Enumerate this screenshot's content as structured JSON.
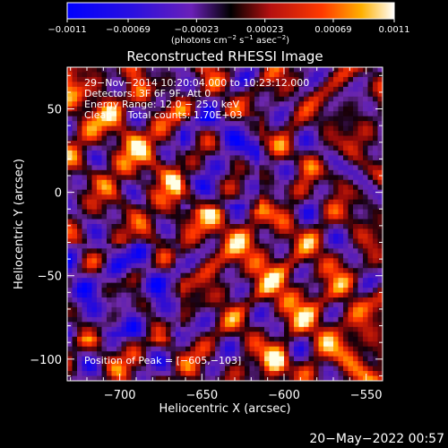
{
  "chart_data": {
    "type": "heatmap",
    "title": "Reconstructed RHESSI Image",
    "xlabel": "Heliocentric X (arcsec)",
    "ylabel": "Heliocentric Y (arcsec)",
    "xlim": [
      -732,
      -540
    ],
    "ylim": [
      -113,
      75
    ],
    "x_ticks": [
      -700,
      -650,
      -600,
      -550
    ],
    "y_ticks": [
      50,
      0,
      -50,
      -100
    ],
    "x_tick_labels": [
      "−700",
      "−650",
      "−600",
      "−550"
    ],
    "y_tick_labels": [
      "50",
      "0",
      "−50",
      "−100"
    ],
    "colorbar": {
      "range": [
        -0.0011,
        0.0011
      ],
      "ticks": [
        -0.0011,
        -0.00069,
        -0.00023,
        0.00023,
        0.00069,
        0.0011
      ],
      "tick_labels": [
        "−0.0011",
        "−0.00069",
        "−0.00023",
        "0.00023",
        "0.00069",
        "0.0011"
      ],
      "units_prefix": "(photons cm",
      "units_exp1": "−2",
      "units_mid1": " s",
      "units_exp2": "−1",
      "units_mid2": " asec",
      "units_exp3": "−2",
      "units_suffix": ")"
    },
    "annotations": {
      "line1": "29−Nov−2014 10:20:04.000 to 10:23:12.000",
      "line2": "Detectors: 3F 6F 9F, Att 0",
      "line3": "Energy Range: 12.0 − 25.0 keV",
      "line4": "Clean     Total counts: 1.70E+03",
      "peak": "Position of Peak = [−605,−103]"
    },
    "peak_position": [
      -605,
      -103
    ]
  },
  "timestamp": "20−May−2022 00:57",
  "colors": {
    "background": "#000000",
    "axes": "#ffffff"
  }
}
